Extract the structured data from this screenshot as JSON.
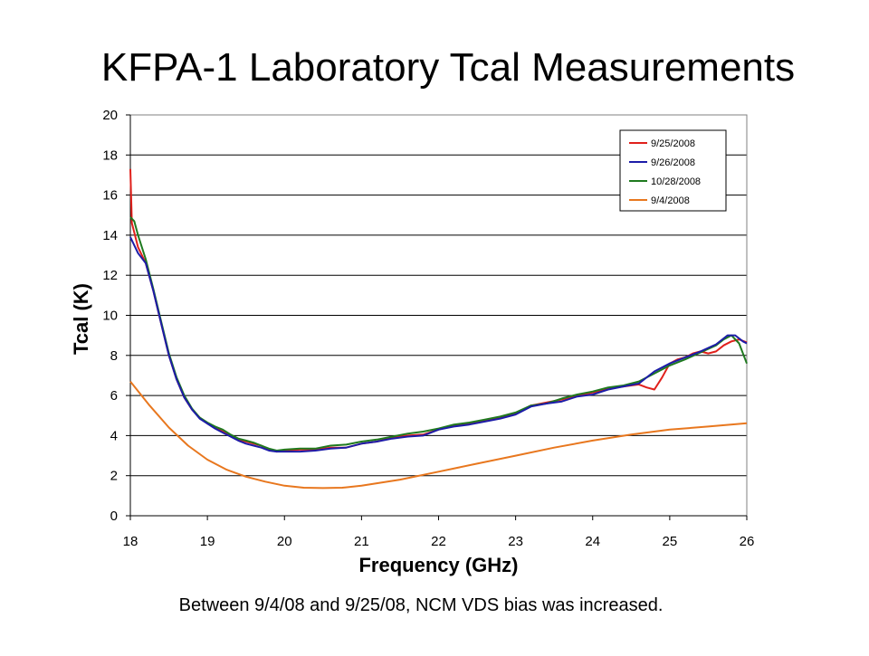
{
  "slide": {
    "title": "KFPA-1 Laboratory Tcal Measurements",
    "caption": "Between 9/4/08 and 9/25/08, NCM VDS bias was increased."
  },
  "chart_data": {
    "type": "line",
    "title": "",
    "xlabel": "Frequency (GHz)",
    "ylabel": "Tcal (K)",
    "xlim": [
      18,
      26
    ],
    "ylim": [
      0,
      20
    ],
    "xticks": [
      18,
      19,
      20,
      21,
      22,
      23,
      24,
      25,
      26
    ],
    "yticks": [
      0,
      2,
      4,
      6,
      8,
      10,
      12,
      14,
      16,
      18,
      20
    ],
    "grid": "horizontal",
    "legend_position": "top-right",
    "series": [
      {
        "name": "9/25/2008",
        "color": "#e0201b",
        "points": [
          [
            18.0,
            17.3
          ],
          [
            18.02,
            14.6
          ],
          [
            18.1,
            13.4
          ],
          [
            18.2,
            12.6
          ],
          [
            18.3,
            11.2
          ],
          [
            18.4,
            9.6
          ],
          [
            18.5,
            8.0
          ],
          [
            18.6,
            6.8
          ],
          [
            18.7,
            5.9
          ],
          [
            18.8,
            5.3
          ],
          [
            18.9,
            4.9
          ],
          [
            19.0,
            4.6
          ],
          [
            19.1,
            4.4
          ],
          [
            19.2,
            4.2
          ],
          [
            19.3,
            4.0
          ],
          [
            19.4,
            3.8
          ],
          [
            19.5,
            3.7
          ],
          [
            19.6,
            3.6
          ],
          [
            19.7,
            3.5
          ],
          [
            19.8,
            3.3
          ],
          [
            19.9,
            3.2
          ],
          [
            20.0,
            3.25
          ],
          [
            20.2,
            3.3
          ],
          [
            20.4,
            3.3
          ],
          [
            20.6,
            3.4
          ],
          [
            20.8,
            3.4
          ],
          [
            21.0,
            3.6
          ],
          [
            21.2,
            3.7
          ],
          [
            21.4,
            3.9
          ],
          [
            21.6,
            4.0
          ],
          [
            21.8,
            4.05
          ],
          [
            22.0,
            4.3
          ],
          [
            22.2,
            4.5
          ],
          [
            22.4,
            4.6
          ],
          [
            22.6,
            4.75
          ],
          [
            22.8,
            4.9
          ],
          [
            23.0,
            5.1
          ],
          [
            23.2,
            5.5
          ],
          [
            23.4,
            5.65
          ],
          [
            23.6,
            5.8
          ],
          [
            23.8,
            6.0
          ],
          [
            24.0,
            6.15
          ],
          [
            24.2,
            6.35
          ],
          [
            24.4,
            6.45
          ],
          [
            24.6,
            6.55
          ],
          [
            24.7,
            6.4
          ],
          [
            24.8,
            6.3
          ],
          [
            24.9,
            6.9
          ],
          [
            25.0,
            7.6
          ],
          [
            25.1,
            7.8
          ],
          [
            25.2,
            7.9
          ],
          [
            25.3,
            8.1
          ],
          [
            25.4,
            8.2
          ],
          [
            25.5,
            8.1
          ],
          [
            25.6,
            8.2
          ],
          [
            25.7,
            8.5
          ],
          [
            25.8,
            8.7
          ],
          [
            25.9,
            8.8
          ],
          [
            26.0,
            8.65
          ]
        ]
      },
      {
        "name": "9/26/2008",
        "color": "#1c1ca8",
        "points": [
          [
            18.0,
            13.9
          ],
          [
            18.1,
            13.1
          ],
          [
            18.2,
            12.6
          ],
          [
            18.3,
            11.2
          ],
          [
            18.4,
            9.6
          ],
          [
            18.5,
            8.0
          ],
          [
            18.6,
            6.8
          ],
          [
            18.7,
            5.9
          ],
          [
            18.8,
            5.3
          ],
          [
            18.9,
            4.85
          ],
          [
            19.0,
            4.6
          ],
          [
            19.1,
            4.35
          ],
          [
            19.2,
            4.15
          ],
          [
            19.3,
            3.95
          ],
          [
            19.4,
            3.75
          ],
          [
            19.5,
            3.6
          ],
          [
            19.6,
            3.5
          ],
          [
            19.7,
            3.4
          ],
          [
            19.8,
            3.25
          ],
          [
            19.9,
            3.2
          ],
          [
            20.0,
            3.2
          ],
          [
            20.2,
            3.2
          ],
          [
            20.4,
            3.25
          ],
          [
            20.6,
            3.35
          ],
          [
            20.8,
            3.4
          ],
          [
            21.0,
            3.6
          ],
          [
            21.2,
            3.7
          ],
          [
            21.4,
            3.85
          ],
          [
            21.6,
            3.95
          ],
          [
            21.8,
            4.0
          ],
          [
            22.0,
            4.3
          ],
          [
            22.2,
            4.45
          ],
          [
            22.4,
            4.55
          ],
          [
            22.6,
            4.7
          ],
          [
            22.8,
            4.85
          ],
          [
            23.0,
            5.05
          ],
          [
            23.2,
            5.45
          ],
          [
            23.4,
            5.6
          ],
          [
            23.6,
            5.7
          ],
          [
            23.8,
            5.95
          ],
          [
            24.0,
            6.05
          ],
          [
            24.2,
            6.3
          ],
          [
            24.4,
            6.45
          ],
          [
            24.6,
            6.6
          ],
          [
            24.8,
            7.2
          ],
          [
            25.0,
            7.6
          ],
          [
            25.2,
            7.9
          ],
          [
            25.4,
            8.2
          ],
          [
            25.6,
            8.55
          ],
          [
            25.75,
            9.0
          ],
          [
            25.85,
            9.0
          ],
          [
            25.95,
            8.7
          ],
          [
            26.0,
            8.6
          ]
        ]
      },
      {
        "name": "10/28/2008",
        "color": "#1f7a1f",
        "points": [
          [
            18.0,
            14.9
          ],
          [
            18.05,
            14.7
          ],
          [
            18.1,
            14.0
          ],
          [
            18.2,
            12.8
          ],
          [
            18.3,
            11.3
          ],
          [
            18.4,
            9.7
          ],
          [
            18.5,
            8.1
          ],
          [
            18.6,
            6.9
          ],
          [
            18.7,
            6.0
          ],
          [
            18.8,
            5.35
          ],
          [
            18.9,
            4.9
          ],
          [
            19.0,
            4.65
          ],
          [
            19.1,
            4.45
          ],
          [
            19.2,
            4.3
          ],
          [
            19.3,
            4.05
          ],
          [
            19.4,
            3.85
          ],
          [
            19.5,
            3.75
          ],
          [
            19.6,
            3.65
          ],
          [
            19.7,
            3.5
          ],
          [
            19.8,
            3.35
          ],
          [
            19.9,
            3.25
          ],
          [
            20.0,
            3.3
          ],
          [
            20.2,
            3.35
          ],
          [
            20.4,
            3.35
          ],
          [
            20.6,
            3.5
          ],
          [
            20.8,
            3.55
          ],
          [
            21.0,
            3.7
          ],
          [
            21.2,
            3.8
          ],
          [
            21.4,
            3.95
          ],
          [
            21.6,
            4.1
          ],
          [
            21.8,
            4.2
          ],
          [
            22.0,
            4.35
          ],
          [
            22.2,
            4.55
          ],
          [
            22.4,
            4.65
          ],
          [
            22.6,
            4.8
          ],
          [
            22.8,
            4.95
          ],
          [
            23.0,
            5.15
          ],
          [
            23.2,
            5.5
          ],
          [
            23.4,
            5.6
          ],
          [
            23.6,
            5.85
          ],
          [
            23.8,
            6.05
          ],
          [
            24.0,
            6.2
          ],
          [
            24.2,
            6.4
          ],
          [
            24.4,
            6.5
          ],
          [
            24.6,
            6.7
          ],
          [
            24.8,
            7.1
          ],
          [
            25.0,
            7.5
          ],
          [
            25.2,
            7.8
          ],
          [
            25.4,
            8.15
          ],
          [
            25.6,
            8.5
          ],
          [
            25.7,
            8.8
          ],
          [
            25.8,
            9.0
          ],
          [
            25.9,
            8.6
          ],
          [
            26.0,
            7.6
          ]
        ]
      },
      {
        "name": "9/4/2008",
        "color": "#e8771e",
        "points": [
          [
            18.0,
            6.7
          ],
          [
            18.25,
            5.5
          ],
          [
            18.5,
            4.4
          ],
          [
            18.75,
            3.5
          ],
          [
            19.0,
            2.8
          ],
          [
            19.25,
            2.3
          ],
          [
            19.5,
            1.95
          ],
          [
            19.75,
            1.7
          ],
          [
            20.0,
            1.5
          ],
          [
            20.25,
            1.4
          ],
          [
            20.5,
            1.38
          ],
          [
            20.75,
            1.4
          ],
          [
            21.0,
            1.5
          ],
          [
            21.5,
            1.8
          ],
          [
            22.0,
            2.2
          ],
          [
            22.5,
            2.6
          ],
          [
            23.0,
            3.0
          ],
          [
            23.5,
            3.4
          ],
          [
            24.0,
            3.75
          ],
          [
            24.5,
            4.05
          ],
          [
            25.0,
            4.3
          ],
          [
            25.5,
            4.45
          ],
          [
            26.0,
            4.62
          ]
        ]
      }
    ]
  }
}
